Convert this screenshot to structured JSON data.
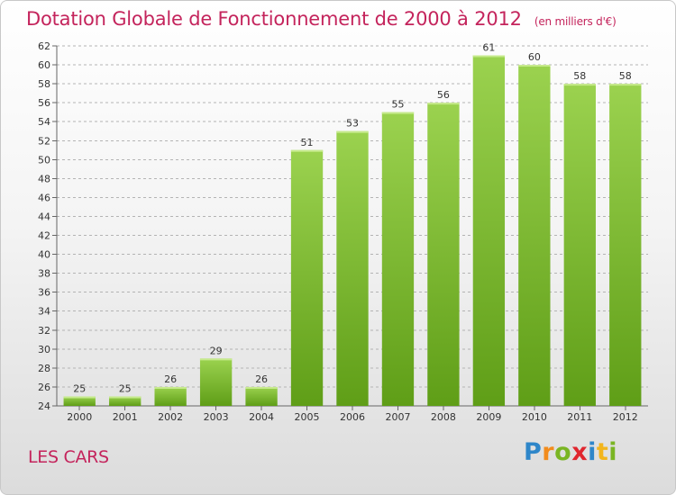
{
  "header": {
    "title": "Dotation Globale de Fonctionnement de 2000 à 2012",
    "unit": "(en milliers d'€)"
  },
  "footer": {
    "commune": "LES CARS",
    "logo_letters": [
      "P",
      "r",
      "o",
      "x",
      "i",
      "t",
      "i"
    ]
  },
  "chart_data": {
    "type": "bar",
    "title": "Dotation Globale de Fonctionnement de 2000 à 2012",
    "subtitle": "(en milliers d'€)",
    "xlabel": "",
    "ylabel": "",
    "categories": [
      "2000",
      "2001",
      "2002",
      "2003",
      "2004",
      "2005",
      "2006",
      "2007",
      "2008",
      "2009",
      "2010",
      "2011",
      "2012"
    ],
    "values": [
      25,
      25,
      26,
      29,
      26,
      51,
      53,
      55,
      56,
      61,
      60,
      58,
      58
    ],
    "ylim": [
      24,
      62
    ],
    "yticks": [
      24,
      26,
      28,
      30,
      32,
      34,
      36,
      38,
      40,
      42,
      44,
      46,
      48,
      50,
      52,
      54,
      56,
      58,
      60,
      62
    ],
    "grid": true,
    "colors": {
      "bar_light": "#9bd24f",
      "bar_dark": "#5f9e17",
      "grid": "#b4b4b4",
      "title": "#c4245c"
    }
  }
}
